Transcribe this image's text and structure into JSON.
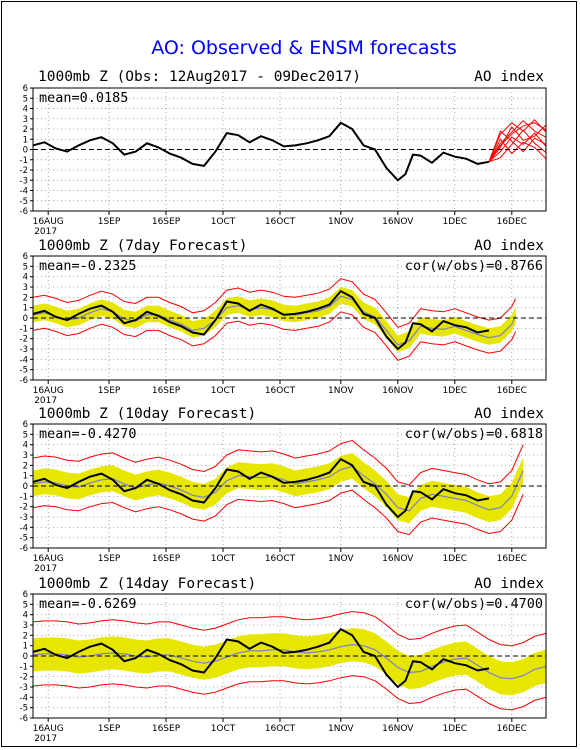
{
  "title": "AO: Observed & ENSM forecasts",
  "colors": {
    "observed": "#000000",
    "ensemble_members": "#ff0000",
    "spread_band": "#e6e600",
    "ensemble_mean": "#7f7fd0",
    "zero_line": "#000000"
  },
  "chart_data": [
    {
      "type": "line",
      "header_left": "1000mb Z (Obs: 12Aug2017 - 09Dec2017)",
      "header_right": "AO index",
      "stat_left": "mean=0.0185",
      "stat_right": "",
      "ylim": [
        -6,
        6
      ],
      "yticks": [
        6,
        5,
        4,
        3,
        2,
        1,
        0,
        -1,
        -2,
        -3,
        -4,
        -5,
        -6
      ],
      "xlim": [
        0,
        135
      ],
      "xticks": [
        {
          "day": 4,
          "label": "16AUG",
          "sub": "2017"
        },
        {
          "day": 20,
          "label": "1SEP"
        },
        {
          "day": 35,
          "label": "16SEP"
        },
        {
          "day": 50,
          "label": "1OCT"
        },
        {
          "day": 65,
          "label": "16OCT"
        },
        {
          "day": 81,
          "label": "1NOV"
        },
        {
          "day": 96,
          "label": "16NOV"
        },
        {
          "day": 111,
          "label": "1DEC"
        },
        {
          "day": 126,
          "label": "16DEC"
        }
      ],
      "observed": {
        "x": [
          0,
          3,
          6,
          9,
          12,
          15,
          18,
          21,
          24,
          27,
          30,
          33,
          36,
          39,
          42,
          45,
          48,
          51,
          54,
          57,
          60,
          63,
          66,
          69,
          72,
          75,
          78,
          81,
          84,
          87,
          90,
          93,
          96,
          98,
          100,
          102,
          105,
          108,
          111,
          114,
          117,
          120
        ],
        "y": [
          0.4,
          0.7,
          0.1,
          -0.2,
          0.4,
          0.9,
          1.2,
          0.6,
          -0.5,
          -0.2,
          0.6,
          0.2,
          -0.4,
          -0.8,
          -1.4,
          -1.6,
          -0.2,
          1.6,
          1.4,
          0.7,
          1.3,
          0.9,
          0.3,
          0.4,
          0.6,
          0.9,
          1.3,
          2.6,
          2.0,
          0.4,
          0.0,
          -1.8,
          -3.0,
          -2.4,
          -0.5,
          -0.6,
          -1.3,
          -0.3,
          -0.7,
          -0.9,
          -1.4,
          -1.2
        ]
      },
      "members": {
        "x": [
          120,
          123,
          126,
          129,
          132,
          135
        ],
        "lines": [
          [
            -1.2,
            1.5,
            2.6,
            1.8,
            2.9,
            1.7
          ],
          [
            -1.2,
            0.6,
            1.7,
            2.8,
            1.8,
            1.2
          ],
          [
            -1.2,
            -0.2,
            1.2,
            0.5,
            1.6,
            0.3
          ],
          [
            -1.2,
            1.0,
            -0.4,
            0.7,
            0.2,
            -0.9
          ],
          [
            -1.2,
            0.2,
            2.2,
            0.9,
            1.3,
            2.4
          ],
          [
            -1.2,
            -0.8,
            0.5,
            1.9,
            0.6,
            -0.3
          ],
          [
            -1.2,
            1.8,
            0.8,
            -0.2,
            1.1,
            0.5
          ],
          [
            -1.2,
            0.4,
            1.5,
            2.3,
            2.6,
            1.9
          ]
        ]
      }
    },
    {
      "type": "line",
      "header_left": "1000mb Z (7day Forecast)",
      "header_right": "AO index",
      "stat_left": "mean=-0.2325",
      "stat_right": "cor(w/obs)=0.8766",
      "ylim": [
        -6,
        6
      ],
      "yticks": [
        6,
        5,
        4,
        3,
        2,
        1,
        0,
        -1,
        -2,
        -3,
        -4,
        -5,
        -6
      ],
      "xlim": [
        0,
        135
      ],
      "xticks": [
        {
          "day": 4,
          "label": "16AUG",
          "sub": "2017"
        },
        {
          "day": 20,
          "label": "1SEP"
        },
        {
          "day": 35,
          "label": "16SEP"
        },
        {
          "day": 50,
          "label": "1OCT"
        },
        {
          "day": 65,
          "label": "16OCT"
        },
        {
          "day": 81,
          "label": "1NOV"
        },
        {
          "day": 96,
          "label": "16NOV"
        },
        {
          "day": 111,
          "label": "1DEC"
        },
        {
          "day": 126,
          "label": "16DEC"
        }
      ],
      "observed": {
        "x": [
          0,
          3,
          6,
          9,
          12,
          15,
          18,
          21,
          24,
          27,
          30,
          33,
          36,
          39,
          42,
          45,
          48,
          51,
          54,
          57,
          60,
          63,
          66,
          69,
          72,
          75,
          78,
          81,
          84,
          87,
          90,
          93,
          96,
          98,
          100,
          102,
          105,
          108,
          111,
          114,
          117,
          120
        ],
        "y": [
          0.4,
          0.7,
          0.1,
          -0.2,
          0.4,
          0.9,
          1.2,
          0.6,
          -0.5,
          -0.2,
          0.6,
          0.2,
          -0.4,
          -0.8,
          -1.4,
          -1.6,
          -0.2,
          1.6,
          1.4,
          0.7,
          1.3,
          0.9,
          0.3,
          0.4,
          0.6,
          0.9,
          1.3,
          2.6,
          2.0,
          0.4,
          0.0,
          -1.8,
          -3.0,
          -2.4,
          -0.5,
          -0.6,
          -1.3,
          -0.3,
          -0.7,
          -0.9,
          -1.4,
          -1.2
        ]
      },
      "mean": {
        "x": [
          0,
          3,
          6,
          9,
          12,
          15,
          18,
          21,
          24,
          27,
          30,
          33,
          36,
          39,
          42,
          45,
          48,
          51,
          54,
          57,
          60,
          63,
          66,
          69,
          72,
          75,
          78,
          81,
          84,
          87,
          90,
          93,
          96,
          99,
          102,
          105,
          108,
          111,
          114,
          117,
          120,
          123,
          126,
          127
        ],
        "y": [
          0.3,
          0.5,
          0.2,
          -0.2,
          0.0,
          0.5,
          0.9,
          0.6,
          -0.1,
          -0.3,
          0.3,
          0.3,
          -0.2,
          -0.6,
          -1.2,
          -1.0,
          -0.2,
          1.0,
          1.2,
          0.8,
          1.0,
          0.8,
          0.4,
          0.3,
          0.5,
          0.7,
          1.1,
          2.1,
          1.8,
          0.6,
          0.1,
          -1.2,
          -2.6,
          -2.2,
          -0.8,
          -1.0,
          -1.1,
          -0.8,
          -1.2,
          -1.6,
          -1.9,
          -1.7,
          -0.6,
          0.2
        ]
      },
      "band": {
        "low": 0.7,
        "high": 0.9
      },
      "envelope": {
        "low": 1.5,
        "high": 1.7
      }
    },
    {
      "type": "line",
      "header_left": "1000mb Z (10day Forecast)",
      "header_right": "AO index",
      "stat_left": "mean=-0.4270",
      "stat_right": "cor(w/obs)=0.6818",
      "ylim": [
        -6,
        6
      ],
      "yticks": [
        6,
        5,
        4,
        3,
        2,
        1,
        0,
        -1,
        -2,
        -3,
        -4,
        -5,
        -6
      ],
      "xlim": [
        0,
        135
      ],
      "xticks": [
        {
          "day": 4,
          "label": "16AUG",
          "sub": "2017"
        },
        {
          "day": 20,
          "label": "1SEP"
        },
        {
          "day": 35,
          "label": "16SEP"
        },
        {
          "day": 50,
          "label": "1OCT"
        },
        {
          "day": 65,
          "label": "16OCT"
        },
        {
          "day": 81,
          "label": "1NOV"
        },
        {
          "day": 96,
          "label": "16NOV"
        },
        {
          "day": 111,
          "label": "1DEC"
        },
        {
          "day": 126,
          "label": "16DEC"
        }
      ],
      "observed": {
        "x": [
          0,
          3,
          6,
          9,
          12,
          15,
          18,
          21,
          24,
          27,
          30,
          33,
          36,
          39,
          42,
          45,
          48,
          51,
          54,
          57,
          60,
          63,
          66,
          69,
          72,
          75,
          78,
          81,
          84,
          87,
          90,
          93,
          96,
          98,
          100,
          102,
          105,
          108,
          111,
          114,
          117,
          120
        ],
        "y": [
          0.4,
          0.7,
          0.1,
          -0.2,
          0.4,
          0.9,
          1.2,
          0.6,
          -0.5,
          -0.2,
          0.6,
          0.2,
          -0.4,
          -0.8,
          -1.4,
          -1.6,
          -0.2,
          1.6,
          1.4,
          0.7,
          1.3,
          0.9,
          0.3,
          0.4,
          0.6,
          0.9,
          1.3,
          2.6,
          2.0,
          0.4,
          0.0,
          -1.8,
          -3.0,
          -2.4,
          -0.5,
          -0.6,
          -1.3,
          -0.3,
          -0.7,
          -0.9,
          -1.4,
          -1.2
        ]
      },
      "mean": {
        "x": [
          0,
          3,
          6,
          9,
          12,
          15,
          18,
          21,
          24,
          27,
          30,
          33,
          36,
          39,
          42,
          45,
          48,
          51,
          54,
          57,
          60,
          63,
          66,
          69,
          72,
          75,
          78,
          81,
          84,
          87,
          90,
          93,
          96,
          99,
          102,
          105,
          108,
          111,
          114,
          117,
          120,
          123,
          126,
          129
        ],
        "y": [
          0.2,
          0.4,
          0.3,
          0.0,
          -0.1,
          0.3,
          0.6,
          0.7,
          0.2,
          -0.2,
          0.1,
          0.3,
          0.0,
          -0.4,
          -0.9,
          -1.1,
          -0.6,
          0.5,
          1.0,
          0.9,
          0.8,
          0.9,
          0.6,
          0.2,
          0.4,
          0.6,
          0.9,
          1.6,
          1.9,
          1.0,
          0.2,
          -0.8,
          -2.1,
          -2.4,
          -1.2,
          -0.8,
          -1.0,
          -1.2,
          -1.4,
          -1.9,
          -2.3,
          -2.1,
          -1.0,
          1.5
        ]
      },
      "band": {
        "low": 1.2,
        "high": 1.3
      },
      "envelope": {
        "low": 2.3,
        "high": 2.5
      }
    },
    {
      "type": "line",
      "header_left": "1000mb Z (14day Forecast)",
      "header_right": "AO index",
      "stat_left": "mean=-0.6269",
      "stat_right": "cor(w/obs)=0.4700",
      "ylim": [
        -6,
        6
      ],
      "yticks": [
        6,
        5,
        4,
        3,
        2,
        1,
        0,
        -1,
        -2,
        -3,
        -4,
        -5,
        -6
      ],
      "xlim": [
        0,
        135
      ],
      "xticks": [
        {
          "day": 4,
          "label": "16AUG",
          "sub": "2017"
        },
        {
          "day": 20,
          "label": "1SEP"
        },
        {
          "day": 35,
          "label": "16SEP"
        },
        {
          "day": 50,
          "label": "1OCT"
        },
        {
          "day": 65,
          "label": "16OCT"
        },
        {
          "day": 81,
          "label": "1NOV"
        },
        {
          "day": 96,
          "label": "16NOV"
        },
        {
          "day": 111,
          "label": "1DEC"
        },
        {
          "day": 126,
          "label": "16DEC"
        }
      ],
      "observed": {
        "x": [
          0,
          3,
          6,
          9,
          12,
          15,
          18,
          21,
          24,
          27,
          30,
          33,
          36,
          39,
          42,
          45,
          48,
          51,
          54,
          57,
          60,
          63,
          66,
          69,
          72,
          75,
          78,
          81,
          84,
          87,
          90,
          93,
          96,
          98,
          100,
          102,
          105,
          108,
          111,
          114,
          117,
          120
        ],
        "y": [
          0.4,
          0.7,
          0.1,
          -0.2,
          0.4,
          0.9,
          1.2,
          0.6,
          -0.5,
          -0.2,
          0.6,
          0.2,
          -0.4,
          -0.8,
          -1.4,
          -1.6,
          -0.2,
          1.6,
          1.4,
          0.7,
          1.3,
          0.9,
          0.3,
          0.4,
          0.6,
          0.9,
          1.3,
          2.6,
          2.0,
          0.4,
          0.0,
          -1.8,
          -3.0,
          -2.4,
          -0.5,
          -0.6,
          -1.3,
          -0.3,
          -0.7,
          -0.9,
          -1.4,
          -1.2
        ]
      },
      "mean": {
        "x": [
          0,
          3,
          6,
          9,
          12,
          15,
          18,
          21,
          24,
          27,
          30,
          33,
          36,
          39,
          42,
          45,
          48,
          51,
          54,
          57,
          60,
          63,
          66,
          69,
          72,
          75,
          78,
          81,
          84,
          87,
          90,
          93,
          96,
          99,
          102,
          105,
          108,
          111,
          114,
          117,
          120,
          123,
          126,
          129,
          132,
          135
        ],
        "y": [
          0.1,
          0.2,
          0.2,
          0.1,
          -0.1,
          0.0,
          0.2,
          0.3,
          0.2,
          0.0,
          -0.1,
          0.1,
          0.1,
          -0.2,
          -0.5,
          -0.7,
          -0.5,
          -0.1,
          0.3,
          0.5,
          0.5,
          0.6,
          0.6,
          0.4,
          0.3,
          0.4,
          0.6,
          0.9,
          1.1,
          1.0,
          0.6,
          -0.2,
          -1.1,
          -1.6,
          -1.5,
          -1.0,
          -0.6,
          -0.3,
          -0.2,
          -0.9,
          -1.6,
          -2.1,
          -2.2,
          -1.9,
          -1.3,
          -1.0
        ]
      },
      "band": {
        "low": 1.6,
        "high": 1.6
      },
      "envelope": {
        "low": 3.0,
        "high": 3.2
      }
    }
  ]
}
